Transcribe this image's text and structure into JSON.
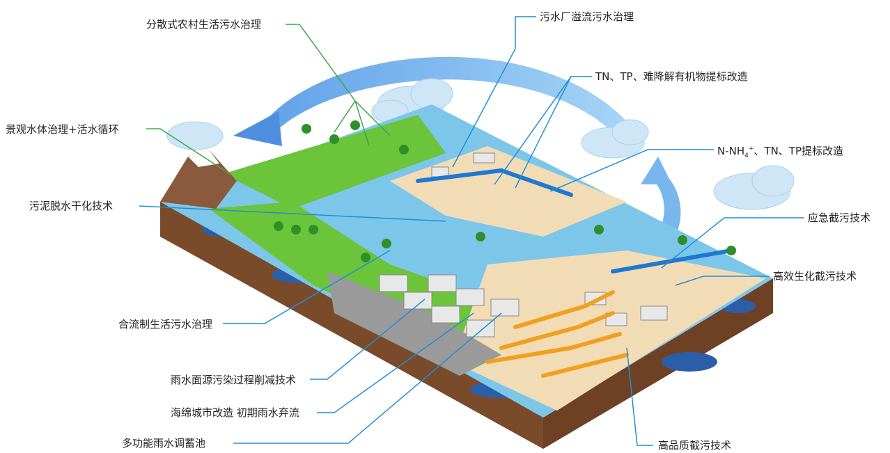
{
  "labels": {
    "rural_sewage": "分散式农村生活污水治理",
    "landscape_water": "景观水体治理+活水循环",
    "sludge_drying": "污泥脱水干化技术",
    "combined_sewage": "合流制生活污水治理",
    "rain_nonpoint": "雨水面源污染过程削减技术",
    "sponge_city": "海绵城市改造 初期雨水弃流",
    "rain_storage": "多功能雨水调蓄池",
    "plant_overflow": "污水厂溢流污水治理",
    "tn_tp_upgrade": "TN、TP、难降解有机物提标改造",
    "nh4_pre": "N-NH",
    "nh4_sub": "4",
    "nh4_sup": "+",
    "nh4_post": "、TN、TP提标改造",
    "emergency_intercept": "应急截污技术",
    "bio_intercept": "高效生化截污技术",
    "quality_intercept": "高品质截污技术"
  },
  "colors": {
    "green_leader": "#3aa84a",
    "blue_leader": "#1f8fd6",
    "water": "#7cc6ea",
    "grass": "#6cc43a",
    "soil": "#7a4b2a",
    "arrow": "#5aa6ea"
  }
}
